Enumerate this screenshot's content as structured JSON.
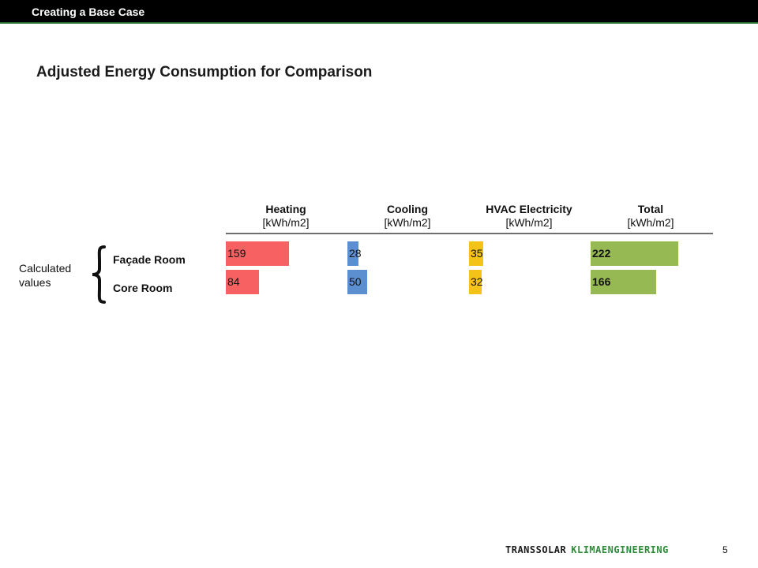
{
  "header": {
    "section_title": "Creating a Base Case",
    "bar_color": "#000000",
    "accent_line_color": "#1f6b2c"
  },
  "page_title": "Adjusted Energy Consumption for Comparison",
  "annotation": {
    "line1": "Calculated",
    "line2": "values",
    "icon": "curly-brace-icon"
  },
  "table": {
    "columns": [
      {
        "title": "Heating",
        "unit": "[kWh/m2]",
        "color": "#f76161"
      },
      {
        "title": "Cooling",
        "unit": "[kWh/m2]",
        "color": "#5b8fd0"
      },
      {
        "title": "HVAC Electricity",
        "unit": "[kWh/m2]",
        "color": "#f5c218"
      },
      {
        "title": "Total",
        "unit": "[kWh/m2]",
        "color": "#97b954"
      }
    ],
    "rows": [
      {
        "label": "Façade Room",
        "values": [
          "159",
          "28",
          "35",
          "222"
        ]
      },
      {
        "label": "Core Room",
        "values": [
          "84",
          "50",
          "32",
          "166"
        ]
      }
    ]
  },
  "chart_data": {
    "type": "bar",
    "categories": [
      "Façade Room",
      "Core Room"
    ],
    "series": [
      {
        "name": "Heating",
        "values": [
          159,
          84
        ]
      },
      {
        "name": "Cooling",
        "values": [
          28,
          50
        ]
      },
      {
        "name": "HVAC Electricity",
        "values": [
          35,
          32
        ]
      },
      {
        "name": "Total",
        "values": [
          222,
          166
        ]
      }
    ],
    "ylabel": "[kWh/m2]",
    "colors": [
      "#f76161",
      "#5b8fd0",
      "#f5c218",
      "#97b954"
    ]
  },
  "footer": {
    "brand_part1": "TRANSSOLAR",
    "brand_part2": "KLIMAENGINEERING",
    "page_number": "5",
    "brand_color": "#2e8b3a"
  }
}
